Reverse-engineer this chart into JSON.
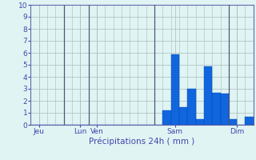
{
  "bar_color": "#1166dd",
  "bar_edge_color": "#0044bb",
  "background_color": "#e0f4f4",
  "grid_color": "#aabbbb",
  "axis_label_color": "#4444aa",
  "tick_color": "#4444aa",
  "spine_color": "#6666aa",
  "vline_color": "#555577",
  "ylim": [
    0,
    10
  ],
  "yticks": [
    0,
    1,
    2,
    3,
    4,
    5,
    6,
    7,
    8,
    9,
    10
  ],
  "xlabel": "Précipitations 24h ( mm )",
  "day_labels": [
    "Jeu",
    "Lun",
    "Ven",
    "Sam",
    "Dim"
  ],
  "day_tick_positions": [
    0.5,
    5.5,
    7.5,
    17.0,
    24.5
  ],
  "vline_positions": [
    3.5,
    6.5,
    14.5,
    23.5
  ],
  "n_bars": 27,
  "bar_values": [
    0,
    0,
    0,
    0,
    0,
    0,
    0,
    0,
    0,
    0,
    0,
    0,
    0,
    0,
    0,
    0,
    1.2,
    5.9,
    1.5,
    3.0,
    0.5,
    4.9,
    2.7,
    2.6,
    0.5,
    0,
    0.7
  ]
}
